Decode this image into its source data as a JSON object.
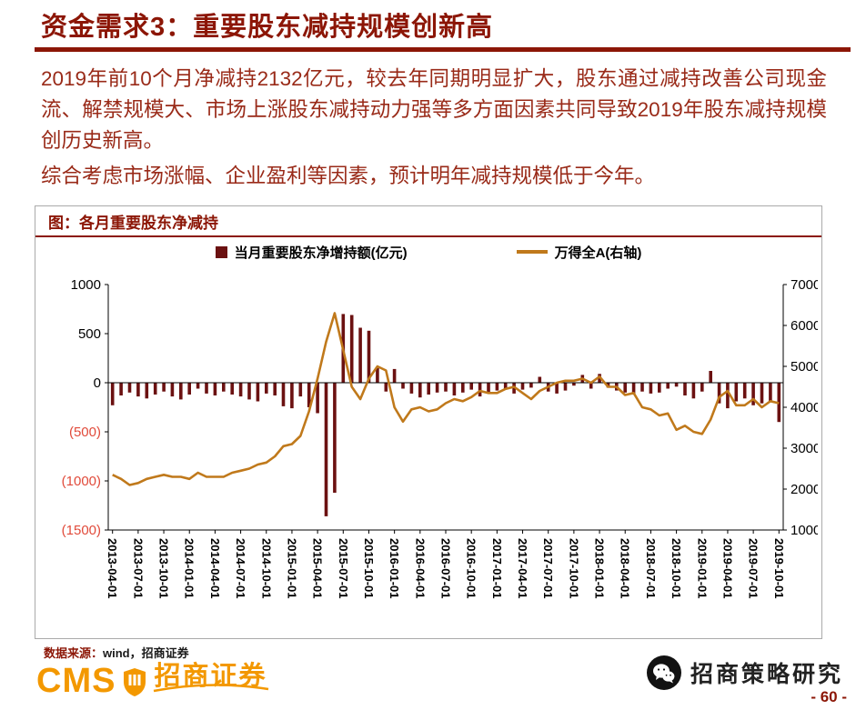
{
  "page": {
    "title": "资金需求3：重要股东减持规模创新高",
    "paragraphs": [
      "2019年前10个月净减持2132亿元，较去年同期明显扩大，股东通过减持改善公司现金流、解禁规模大、市场上涨股东减持动力强等多方面因素共同导致2019年股东减持规模创历史新高。",
      "综合考虑市场涨幅、企业盈利等因素，预计明年减持规模低于今年。"
    ],
    "page_number": "- 60 -"
  },
  "figure": {
    "title": "图：各月重要股东净减持",
    "legend": [
      "当月重要股东净增持额(亿元)",
      "万得全A(右轴)"
    ],
    "source_label": "数据来源：",
    "source_value": "wind，招商证券"
  },
  "footer": {
    "cms": "CMS",
    "brand": "招商证券",
    "account_name": "招商策略研究"
  },
  "colors": {
    "dark_red": "#8C1606",
    "body_red": "#992A18",
    "bar": "#6B1111",
    "line": "#C0791B",
    "negative_tick": "#E14B3B",
    "logo_orange": "#F39800"
  },
  "chart_data": {
    "type": "combo(bar+line)",
    "title": "各月重要股东净减持",
    "x_start_month": "2013-04",
    "x_frequency": "monthly",
    "n_points": 79,
    "x_tick_labels": [
      "2013-04-01",
      "2013-07-01",
      "2013-10-01",
      "2014-01-01",
      "2014-04-01",
      "2014-07-01",
      "2014-10-01",
      "2015-01-01",
      "2015-04-01",
      "2015-07-01",
      "2015-10-01",
      "2016-01-01",
      "2016-04-01",
      "2016-07-01",
      "2016-10-01",
      "2017-01-01",
      "2017-04-01",
      "2017-07-01",
      "2017-10-01",
      "2018-01-01",
      "2018-04-01",
      "2018-07-01",
      "2018-10-01",
      "2019-01-01",
      "2019-04-01",
      "2019-07-01",
      "2019-10-01"
    ],
    "left_axis": {
      "ticks": [
        1000,
        500,
        0,
        -500,
        -1000,
        -1500
      ],
      "tick_labels": [
        "1000",
        "500",
        "0",
        "(500)",
        "(1000)",
        "(1500)"
      ],
      "range": [
        -1500,
        1000
      ]
    },
    "right_axis": {
      "ticks": [
        7000,
        6000,
        5000,
        4000,
        3000,
        2000,
        1000
      ],
      "range": [
        1000,
        7000
      ]
    },
    "series": [
      {
        "name": "当月重要股东净增持额(亿元)",
        "type": "bar",
        "axis": "left",
        "values": [
          -230,
          -130,
          -100,
          -140,
          -160,
          -120,
          -90,
          -140,
          -170,
          -120,
          -60,
          -110,
          -130,
          -90,
          -120,
          -140,
          -170,
          -190,
          -110,
          -130,
          -240,
          -260,
          -140,
          -250,
          -310,
          -1360,
          -1120,
          700,
          690,
          560,
          530,
          150,
          -90,
          140,
          -60,
          -110,
          -150,
          -120,
          -100,
          -90,
          -130,
          -100,
          -70,
          -140,
          -110,
          -80,
          -60,
          -110,
          -70,
          -50,
          60,
          -90,
          -110,
          -80,
          -30,
          80,
          -60,
          90,
          -50,
          -80,
          -100,
          -120,
          -90,
          -110,
          -100,
          -60,
          -40,
          -130,
          -160,
          -90,
          120,
          -210,
          -260,
          -190,
          -160,
          -230,
          -210,
          -190,
          -400
        ]
      },
      {
        "name": "万得全A(右轴)",
        "type": "line",
        "axis": "right",
        "values": [
          2350,
          2250,
          2100,
          2150,
          2250,
          2300,
          2350,
          2300,
          2300,
          2250,
          2400,
          2300,
          2300,
          2300,
          2400,
          2450,
          2500,
          2600,
          2650,
          2800,
          3050,
          3100,
          3300,
          3900,
          4700,
          5600,
          6300,
          5400,
          4500,
          4200,
          4700,
          5000,
          4900,
          4000,
          3650,
          3950,
          4000,
          3900,
          3950,
          4100,
          4200,
          4150,
          4250,
          4400,
          4350,
          4350,
          4450,
          4500,
          4350,
          4200,
          4400,
          4500,
          4600,
          4650,
          4650,
          4700,
          4600,
          4750,
          4500,
          4500,
          4300,
          4350,
          4000,
          3950,
          3800,
          3850,
          3450,
          3550,
          3400,
          3350,
          3700,
          4250,
          4400,
          4050,
          4050,
          4200,
          4000,
          4150,
          4100
        ]
      }
    ]
  }
}
